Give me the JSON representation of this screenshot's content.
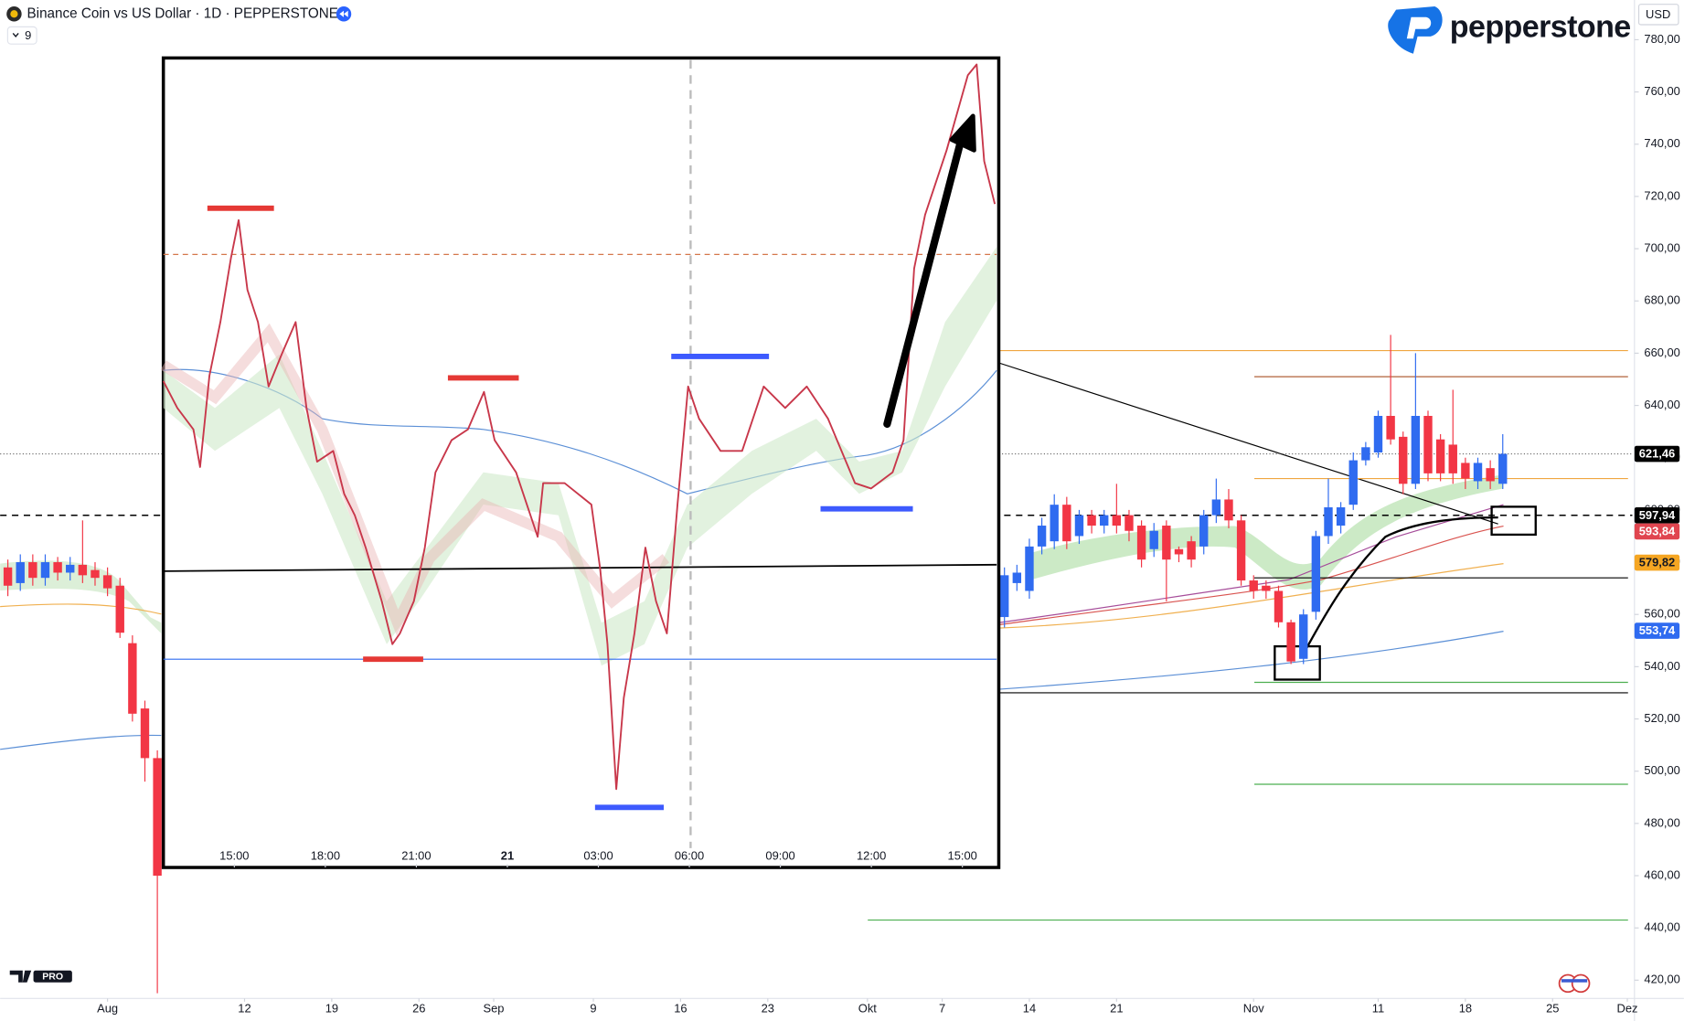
{
  "header": {
    "title": "Binance Coin vs US Dollar · 1D · PEPPERSTONE",
    "interval_badge": "9",
    "currency": "USD",
    "broker_logo": "pepperstone",
    "platform_logo": "PRO"
  },
  "chart_data": [
    {
      "type": "candlestick",
      "up_color": "#2f6bf0",
      "down_color": "#f23645",
      "x": [
        -7,
        -6,
        -5,
        -4,
        -3,
        -2,
        -1,
        0,
        1,
        2,
        3,
        4,
        5,
        73,
        74,
        75,
        76,
        77,
        78,
        79,
        80,
        81,
        82,
        83,
        84,
        85,
        86,
        87,
        88,
        89,
        90,
        91,
        92,
        93,
        94,
        95,
        96,
        97,
        98,
        99,
        100,
        101,
        102,
        103,
        104,
        105,
        106,
        107,
        108,
        109,
        110,
        111,
        112,
        113
      ],
      "open": [
        578,
        572,
        580,
        574,
        580,
        576,
        579,
        577,
        575,
        571,
        549,
        524,
        505,
        559,
        572,
        569,
        586,
        588,
        602,
        590,
        598,
        594,
        598,
        598,
        594,
        585,
        594,
        585,
        588,
        586,
        598,
        604,
        596,
        573,
        571,
        569,
        557,
        543,
        561,
        590,
        594,
        602,
        619,
        622,
        636,
        628,
        610,
        636,
        627,
        625,
        618,
        611,
        616,
        610
      ],
      "high": [
        581,
        583,
        583,
        583,
        582,
        582,
        596,
        580,
        578,
        574,
        552,
        527,
        508,
        578,
        579,
        589,
        597,
        606,
        605,
        600,
        600,
        600,
        610,
        600,
        596,
        595,
        596,
        586,
        590,
        600,
        612,
        608,
        598,
        575,
        573,
        571,
        558,
        562,
        592,
        612,
        603,
        622,
        626,
        638,
        667,
        630,
        660,
        638,
        629,
        646,
        620,
        620,
        619,
        629
      ],
      "low": [
        567,
        569,
        571,
        571,
        573,
        573,
        572,
        571,
        567,
        551,
        519,
        496,
        415,
        555,
        569,
        566,
        583,
        585,
        585,
        587,
        591,
        591,
        591,
        588,
        578,
        582,
        565,
        580,
        578,
        583,
        595,
        593,
        571,
        566,
        566,
        555,
        541,
        541,
        558,
        587,
        591,
        600,
        617,
        620,
        625,
        606,
        608,
        611,
        611,
        610,
        608,
        608,
        608,
        608
      ],
      "close": [
        571,
        580,
        574,
        580,
        576,
        579,
        575,
        574,
        570,
        553,
        522,
        505,
        460,
        575,
        576,
        586,
        594,
        602,
        588,
        598,
        594,
        598,
        594,
        592,
        581,
        592,
        581,
        583,
        581,
        598,
        604,
        596,
        573,
        569,
        569,
        557,
        542,
        560,
        590,
        601,
        601,
        619,
        624,
        636,
        627,
        610,
        636,
        614,
        614,
        614,
        612,
        618,
        611,
        621.46
      ],
      "xlim": [
        -7.62,
        123.4
      ],
      "ylim": [
        413,
        795.2
      ],
      "xticks": [
        {
          "value": 1,
          "label": "Aug"
        },
        12,
        19,
        26,
        {
          "value": 32,
          "label": "Sep"
        },
        {
          "value": 40,
          "label": "9"
        },
        {
          "value": 47,
          "label": "16"
        },
        {
          "value": 54,
          "label": "23"
        },
        {
          "value": 62,
          "label": "Okt"
        },
        {
          "value": 68,
          "label": "7"
        },
        {
          "value": 75,
          "label": "14"
        },
        {
          "value": 82,
          "label": "21"
        },
        {
          "value": 93,
          "label": "Nov"
        },
        {
          "value": 103,
          "label": "11"
        },
        {
          "value": 110,
          "label": "18"
        },
        {
          "value": 117,
          "label": "25"
        },
        {
          "value": 123,
          "label": "Dez"
        }
      ],
      "yticks": [
        {
          "value": 420,
          "label": "420,00"
        },
        {
          "value": 440,
          "label": "440,00"
        },
        {
          "value": 460,
          "label": "460,00"
        },
        {
          "value": 480,
          "label": "480,00"
        },
        {
          "value": 500,
          "label": "500,00"
        },
        {
          "value": 520,
          "label": "520,00"
        },
        {
          "value": 540,
          "label": "540,00"
        },
        {
          "value": 560,
          "label": "560,00"
        },
        {
          "value": 580,
          "label": "580,00"
        },
        {
          "value": 600,
          "label": "600,00"
        },
        {
          "value": 620,
          "label": "620,00"
        },
        {
          "value": 640,
          "label": "640,00"
        },
        {
          "value": 660,
          "label": "660,00"
        },
        {
          "value": 680,
          "label": "680,00"
        },
        {
          "value": 700,
          "label": "700,00"
        },
        {
          "value": 720,
          "label": "720,00"
        },
        {
          "value": 740,
          "label": "740,00"
        },
        {
          "value": 760,
          "label": "760,00"
        },
        {
          "value": 780,
          "label": "780,00"
        }
      ],
      "grid": false,
      "levels": [
        {
          "value": 661,
          "color": "#f0a640"
        },
        {
          "value": 651,
          "color": "#b0623a"
        },
        {
          "value": 612,
          "color": "#f0a640"
        },
        {
          "value": 574,
          "color": "#000000"
        },
        {
          "value": 534,
          "color": "#4caf50"
        },
        {
          "value": 530,
          "color": "#000000"
        },
        {
          "value": 495,
          "color": "#4caf50"
        },
        {
          "value": 443,
          "color": "#4caf50"
        }
      ],
      "price_labels": [
        {
          "value": 621.46,
          "label": "621,46",
          "color": "#000000",
          "line": "dotted"
        },
        {
          "value": 597.94,
          "label": "597,94",
          "color": "#000000",
          "line": "dashed"
        },
        {
          "value": 593.84,
          "label": "593,84",
          "color": "#e0454f"
        },
        {
          "value": 579.82,
          "label": "579,82",
          "color": "#f5a623"
        },
        {
          "value": 553.74,
          "label": "553,74",
          "color": "#2f6bf0"
        }
      ]
    },
    {
      "type": "line",
      "color": "#c8374a",
      "x": [
        12.66,
        13.12,
        13.65,
        13.87,
        14.18,
        14.54,
        14.89,
        15.14,
        15.43,
        15.78,
        16.13,
        16.56,
        17.02,
        17.38,
        17.73,
        18.26,
        18.62,
        18.97,
        19.33,
        19.86,
        20.21,
        20.46,
        20.92,
        21.28,
        21.63,
        22.16,
        22.7,
        23.23,
        23.58,
        24.29,
        25.0,
        25.18,
        25.89,
        26.77,
        27.06,
        27.3,
        27.59,
        27.84,
        28.19,
        28.55,
        28.9,
        29.26,
        29.61,
        29.96,
        30.32,
        31.03,
        31.74,
        32.45,
        33.16,
        33.87,
        34.57,
        35.46,
        35.99,
        36.7,
        37.06,
        37.41,
        37.77,
        38.48,
        39.18,
        39.47,
        39.72,
        40.07
      ],
      "values": [
        570,
        567.5,
        565.5,
        562,
        570.5,
        575.5,
        581.5,
        585,
        578.5,
        575.5,
        569.5,
        572.5,
        575.5,
        567.5,
        562.5,
        563.5,
        559.5,
        557.5,
        554.5,
        549.5,
        545.5,
        546.5,
        549.5,
        554.5,
        561.5,
        564.5,
        565.5,
        569,
        564.5,
        561.5,
        555.5,
        560.5,
        560.5,
        558.5,
        552.5,
        545.5,
        532,
        540.5,
        546.5,
        554.5,
        549.5,
        546.5,
        558.5,
        569.5,
        566.5,
        563.5,
        563.5,
        569.5,
        567.5,
        569.5,
        566.5,
        560.5,
        560,
        561.5,
        564.5,
        580.5,
        585.5,
        591.5,
        598.5,
        599.5,
        590.5,
        586.5
      ],
      "xlim": [
        12.66,
        40.2
      ],
      "ylim": [
        524.7,
        600
      ],
      "xticks": [
        {
          "value": 15,
          "label": "15:00"
        },
        {
          "value": 18,
          "label": "18:00"
        },
        {
          "value": 21,
          "label": "21:00"
        },
        {
          "value": 24,
          "label": "21"
        },
        {
          "value": 27,
          "label": "03:00"
        },
        {
          "value": 30,
          "label": "06:00"
        },
        {
          "value": 33,
          "label": "09:00"
        },
        {
          "value": 36,
          "label": "12:00"
        },
        {
          "value": 39,
          "label": "15:00"
        }
      ]
    }
  ]
}
